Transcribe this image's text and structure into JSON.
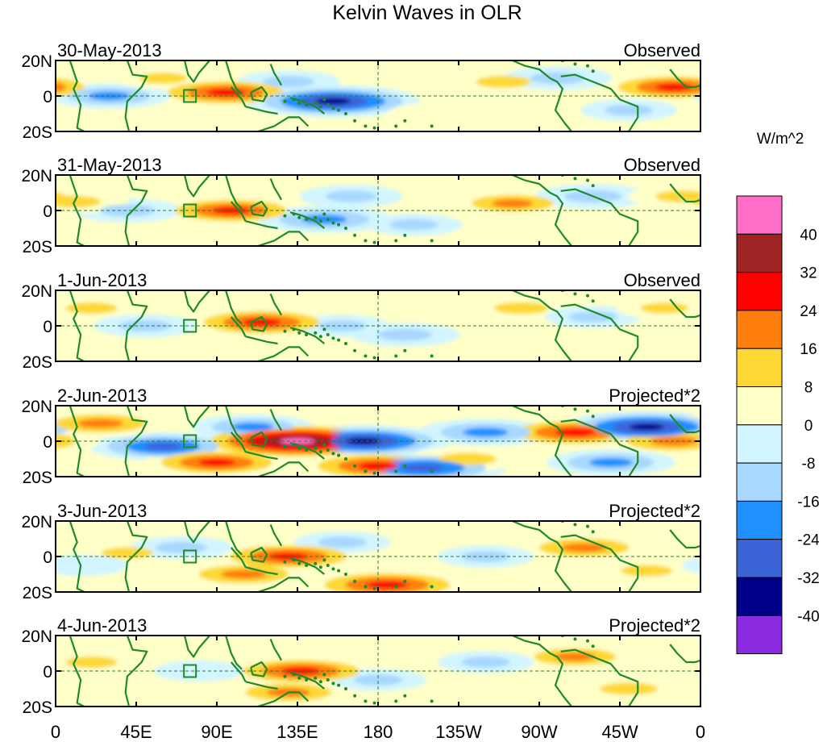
{
  "chart_data": {
    "type": "heatmap",
    "title": "Kelvin Waves in OLR",
    "colorbar": {
      "units": "W/m^2",
      "levels": [
        40,
        32,
        24,
        16,
        8,
        0,
        -8,
        -16,
        -24,
        -32,
        -40
      ],
      "colors": [
        "#ff6ec7",
        "#9e2424",
        "#ff0000",
        "#ff7f0e",
        "#fdd835",
        "#ffffc8",
        "#d2f5ff",
        "#a8d8ff",
        "#1e90ff",
        "#3c64d8",
        "#00008b",
        "#8a2be2"
      ]
    },
    "lat_labels": [
      "20N",
      "0",
      "20S"
    ],
    "lon_labels": [
      "0",
      "45E",
      "90E",
      "135E",
      "180",
      "135W",
      "90W",
      "45W",
      "0"
    ],
    "panels": [
      {
        "date": "30-May-2013",
        "type": "Observed",
        "blobs": [
          {
            "lon": 95,
            "lat": 2,
            "value": 28
          },
          {
            "lon": 155,
            "lat": -3,
            "value": -34
          },
          {
            "lon": 345,
            "lat": 5,
            "value": 26
          },
          {
            "lon": 30,
            "lat": 0,
            "value": -18
          },
          {
            "lon": 250,
            "lat": 8,
            "value": 14
          },
          {
            "lon": 280,
            "lat": 10,
            "value": -14
          },
          {
            "lon": 60,
            "lat": 10,
            "value": 10
          },
          {
            "lon": 210,
            "lat": -10,
            "value": 8
          },
          {
            "lon": 130,
            "lat": 8,
            "value": -12
          },
          {
            "lon": 320,
            "lat": -8,
            "value": -10
          }
        ]
      },
      {
        "date": "31-May-2013",
        "type": "Observed",
        "blobs": [
          {
            "lon": 98,
            "lat": 0,
            "value": 26
          },
          {
            "lon": 150,
            "lat": -5,
            "value": -22
          },
          {
            "lon": 165,
            "lat": 8,
            "value": -12
          },
          {
            "lon": 255,
            "lat": 4,
            "value": 18
          },
          {
            "lon": 40,
            "lat": 0,
            "value": -14
          },
          {
            "lon": 300,
            "lat": 8,
            "value": -16
          },
          {
            "lon": 10,
            "lat": 5,
            "value": 14
          },
          {
            "lon": 200,
            "lat": -8,
            "value": -10
          },
          {
            "lon": 350,
            "lat": 8,
            "value": 14
          }
        ]
      },
      {
        "date": "1-Jun-2013",
        "type": "Observed",
        "blobs": [
          {
            "lon": 115,
            "lat": 2,
            "value": 28
          },
          {
            "lon": 20,
            "lat": 10,
            "value": 12
          },
          {
            "lon": 160,
            "lat": 0,
            "value": -10
          },
          {
            "lon": 195,
            "lat": -5,
            "value": -14
          },
          {
            "lon": 260,
            "lat": 10,
            "value": 14
          },
          {
            "lon": 300,
            "lat": 5,
            "value": -10
          },
          {
            "lon": 50,
            "lat": 0,
            "value": -12
          },
          {
            "lon": 340,
            "lat": 10,
            "value": 10
          }
        ]
      },
      {
        "date": "2-Jun-2013",
        "type": "Projected*2",
        "blobs": [
          {
            "lon": 135,
            "lat": 0,
            "value": 45
          },
          {
            "lon": 60,
            "lat": -3,
            "value": -26
          },
          {
            "lon": 172,
            "lat": 0,
            "value": -34
          },
          {
            "lon": 90,
            "lat": -12,
            "value": 26
          },
          {
            "lon": 180,
            "lat": -14,
            "value": 30
          },
          {
            "lon": 205,
            "lat": -15,
            "value": -32
          },
          {
            "lon": 290,
            "lat": 5,
            "value": 30
          },
          {
            "lon": 330,
            "lat": 8,
            "value": -34
          },
          {
            "lon": 345,
            "lat": 0,
            "value": 24
          },
          {
            "lon": 25,
            "lat": 10,
            "value": 22
          },
          {
            "lon": 240,
            "lat": 5,
            "value": -22
          },
          {
            "lon": 310,
            "lat": -12,
            "value": -20
          },
          {
            "lon": 110,
            "lat": 8,
            "value": -18
          },
          {
            "lon": 230,
            "lat": -10,
            "value": 16
          }
        ]
      },
      {
        "date": "3-Jun-2013",
        "type": "Projected*2",
        "blobs": [
          {
            "lon": 130,
            "lat": 0,
            "value": 28
          },
          {
            "lon": 185,
            "lat": -16,
            "value": 32
          },
          {
            "lon": 105,
            "lat": -10,
            "value": 22
          },
          {
            "lon": 40,
            "lat": 2,
            "value": 12
          },
          {
            "lon": 70,
            "lat": 5,
            "value": -12
          },
          {
            "lon": 295,
            "lat": 5,
            "value": 22
          },
          {
            "lon": 240,
            "lat": 0,
            "value": -10
          },
          {
            "lon": 330,
            "lat": -8,
            "value": 12
          },
          {
            "lon": 160,
            "lat": 8,
            "value": -10
          },
          {
            "lon": 15,
            "lat": -5,
            "value": -8
          }
        ]
      },
      {
        "date": "4-Jun-2013",
        "type": "Projected*2",
        "blobs": [
          {
            "lon": 137,
            "lat": 0,
            "value": 28
          },
          {
            "lon": 130,
            "lat": -12,
            "value": 20
          },
          {
            "lon": 290,
            "lat": 8,
            "value": 18
          },
          {
            "lon": 20,
            "lat": 5,
            "value": 12
          },
          {
            "lon": 240,
            "lat": 5,
            "value": -10
          },
          {
            "lon": 320,
            "lat": -10,
            "value": 16
          },
          {
            "lon": 80,
            "lat": 0,
            "value": -8
          },
          {
            "lon": 180,
            "lat": -5,
            "value": -10
          }
        ]
      }
    ]
  }
}
